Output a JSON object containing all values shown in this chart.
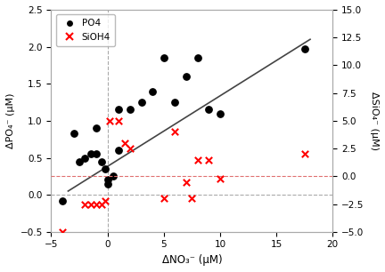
{
  "po4_x": [
    -4,
    -3,
    -2.5,
    -2,
    -1.5,
    -1,
    -1,
    -0.5,
    -0.2,
    0,
    0,
    0.5,
    1,
    1,
    2,
    3,
    4,
    5,
    6,
    7,
    8,
    9,
    10,
    17.5
  ],
  "po4_y": [
    -0.08,
    0.83,
    0.45,
    0.5,
    0.55,
    0.9,
    0.55,
    0.45,
    0.35,
    0.2,
    0.15,
    0.25,
    0.6,
    1.15,
    1.15,
    1.25,
    1.4,
    1.85,
    1.25,
    1.6,
    1.85,
    1.15,
    1.1,
    1.97
  ],
  "sioh4_x": [
    -4,
    -2,
    -1.5,
    -1,
    -0.5,
    -0.2,
    0.2,
    1,
    1.5,
    2,
    5,
    6,
    7,
    7.5,
    8,
    9,
    10,
    17.5
  ],
  "sioh4_y": [
    -5,
    -2.5,
    -2.5,
    -2.5,
    -2.5,
    -2.2,
    5.0,
    5.0,
    3.0,
    2.5,
    -2.0,
    4.0,
    -0.5,
    -2.0,
    1.5,
    1.5,
    -0.2,
    2.0
  ],
  "trendline_x": [
    -3.5,
    18
  ],
  "trendline_y": [
    0.05,
    2.1
  ],
  "xlim": [
    -5,
    20
  ],
  "ylim_left": [
    -0.5,
    2.5
  ],
  "ylim_right": [
    -5,
    15
  ],
  "xlabel": "ΔNO₃⁻ (μM)",
  "ylabel_left": "ΔPO₄⁻ (μM)",
  "ylabel_right": "ΔSiO₄⁻ (μM)",
  "xticks": [
    -5,
    0,
    5,
    10,
    15,
    20
  ],
  "yticks_left": [
    -0.5,
    0.0,
    0.5,
    1.0,
    1.5,
    2.0,
    2.5
  ],
  "yticks_right": [
    -5,
    -2.5,
    0,
    2.5,
    5,
    7.5,
    10,
    12.5,
    15
  ],
  "legend_po4": "PO4",
  "legend_sioh4": "SiOH4",
  "vline_x": 0.0,
  "hline_left_y": 0.0,
  "hline_right_y": 0.0,
  "background_color": "#ffffff",
  "plot_bg_color": "#ffffff",
  "trendline_color": "#444444",
  "hline_color_red": "#e07070",
  "hline_color_gray": "#aaaaaa",
  "border_color": "#aaaaaa"
}
